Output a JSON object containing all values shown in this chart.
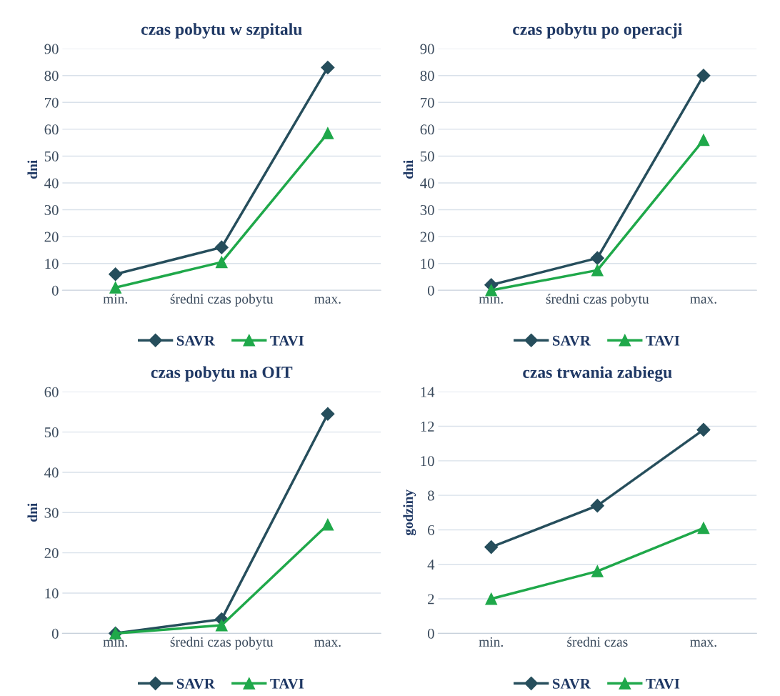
{
  "chart_data": [
    {
      "type": "line",
      "title": "czas pobytu w szpitalu",
      "ylabel": "dni",
      "categories": [
        "min.",
        "średni czas pobytu",
        "max."
      ],
      "ylim": [
        0,
        90
      ],
      "yticks": [
        0,
        10,
        20,
        30,
        40,
        50,
        60,
        70,
        80,
        90
      ],
      "grid": "y",
      "legend": "bottom",
      "series": [
        {
          "name": "SAVR",
          "color": "#264e5c",
          "marker": "diamond",
          "values": [
            6,
            16,
            83
          ]
        },
        {
          "name": "TAVI",
          "color": "#1fa84a",
          "marker": "triangle",
          "values": [
            1,
            10.5,
            58.5
          ]
        }
      ]
    },
    {
      "type": "line",
      "title": "czas pobytu po operacji",
      "ylabel": "dni",
      "categories": [
        "min.",
        "średni czas pobytu",
        "max."
      ],
      "ylim": [
        0,
        90
      ],
      "yticks": [
        0,
        10,
        20,
        30,
        40,
        50,
        60,
        70,
        80,
        90
      ],
      "grid": "y",
      "legend": "bottom",
      "series": [
        {
          "name": "SAVR",
          "color": "#264e5c",
          "marker": "diamond",
          "values": [
            2,
            12,
            80
          ]
        },
        {
          "name": "TAVI",
          "color": "#1fa84a",
          "marker": "triangle",
          "values": [
            0,
            7.5,
            56
          ]
        }
      ]
    },
    {
      "type": "line",
      "title": "czas pobytu na OIT",
      "ylabel": "dni",
      "categories": [
        "min.",
        "średni czas pobytu",
        "max."
      ],
      "ylim": [
        0,
        60
      ],
      "yticks": [
        0,
        10,
        20,
        30,
        40,
        50,
        60
      ],
      "grid": "y",
      "legend": "bottom",
      "series": [
        {
          "name": "SAVR",
          "color": "#264e5c",
          "marker": "diamond",
          "values": [
            0,
            3.5,
            54.5
          ]
        },
        {
          "name": "TAVI",
          "color": "#1fa84a",
          "marker": "triangle",
          "values": [
            0,
            2,
            27
          ]
        }
      ]
    },
    {
      "type": "line",
      "title": "czas trwania zabiegu",
      "ylabel": "godziny",
      "categories": [
        "min.",
        "średni czas",
        "max."
      ],
      "ylim": [
        0,
        14
      ],
      "yticks": [
        0,
        2,
        4,
        6,
        8,
        10,
        12,
        14
      ],
      "grid": "y",
      "legend": "bottom",
      "series": [
        {
          "name": "SAVR",
          "color": "#264e5c",
          "marker": "diamond",
          "values": [
            5,
            7.4,
            11.8
          ]
        },
        {
          "name": "TAVI",
          "color": "#1fa84a",
          "marker": "triangle",
          "values": [
            2,
            3.6,
            6.1
          ]
        }
      ]
    }
  ]
}
